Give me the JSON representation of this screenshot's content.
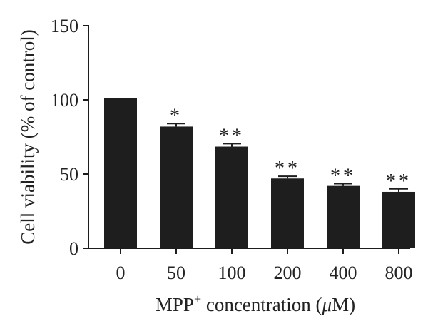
{
  "chart_data": {
    "type": "bar",
    "title": "",
    "xlabel": {
      "prefix": "MPP",
      "superscript": "+",
      "middle": " concentration (",
      "italic": "μ",
      "suffix": "M)"
    },
    "ylabel": "Cell viability (% of control)",
    "ylim": [
      0,
      150
    ],
    "yticks": [
      0,
      50,
      100,
      150
    ],
    "categories": [
      "0",
      "50",
      "100",
      "200",
      "400",
      "800"
    ],
    "series": [
      {
        "values": [
          101,
          82,
          68.5,
          47,
          42,
          38
        ],
        "errors": [
          0,
          2,
          2,
          1.5,
          1.5,
          2
        ]
      }
    ],
    "significance": [
      "",
      "*",
      "**",
      "**",
      "**",
      "**"
    ],
    "grid": false,
    "legend": "none",
    "bar_color": "#1e1e1e"
  }
}
